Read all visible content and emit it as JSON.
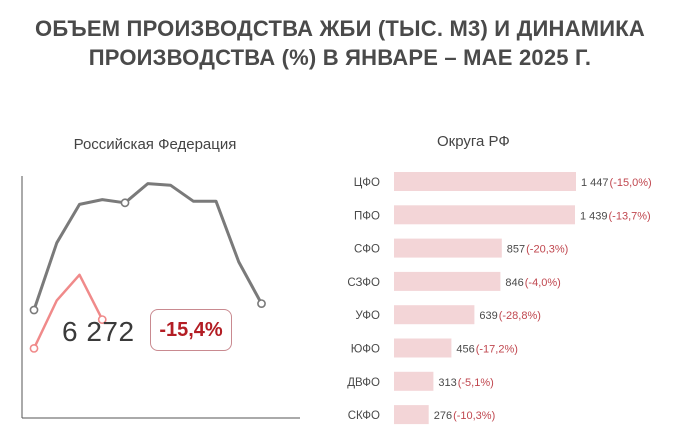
{
  "title": {
    "line1": "ОБЪЕМ ПРОИЗВОДСТВА ЖБИ (ТЫС. М3) И ДИНАМИКА",
    "line2": "ПРОИЗВОДСТВА (%) В ЯНВАРЕ – МАЕ 2025 Г."
  },
  "left_panel": {
    "title": "Российская Федерация",
    "value": "6 272",
    "change": "-15,4%"
  },
  "right_panel": {
    "title": "Округа РФ"
  },
  "colors": {
    "line_prev": "#7a7a7a",
    "line_curr": "#f08a8a",
    "bar_fill": "#f3d5d7",
    "change_negative": "#b31d24",
    "label_text": "#4a4a4a"
  },
  "chart_data": [
    {
      "type": "line",
      "x": [
        1,
        2,
        3,
        4,
        5,
        6,
        7,
        8,
        9,
        10,
        11,
        12
      ],
      "series": [
        {
          "values": [
            0.1,
            0.52,
            0.76,
            0.79,
            0.77,
            0.89,
            0.88,
            0.78,
            0.78,
            0.4,
            0.14,
            null
          ]
        },
        {
          "values": [
            -0.14,
            0.16,
            0.32,
            0.04,
            null,
            null,
            null,
            null,
            null,
            null,
            null,
            null
          ]
        }
      ],
      "axes": "y-axis and x-axis lines, no ticks or labels"
    },
    {
      "type": "bar",
      "orientation": "horizontal",
      "categories": [
        "ЦФО",
        "ПФО",
        "СФО",
        "СЗФО",
        "УФО",
        "ЮФО",
        "ДВФО",
        "СКФО"
      ],
      "values": [
        1447,
        1439,
        857,
        846,
        639,
        456,
        313,
        276
      ],
      "value_labels": [
        "1 447",
        "1 439",
        "857",
        "846",
        "639",
        "456",
        "313",
        "276"
      ],
      "changes": [
        "(-15,0%)",
        "(-13,7%)",
        "(-20,3%)",
        "(-4,0%)",
        "(-28,8%)",
        "(-17,2%)",
        "(-5,1%)",
        "(-10,3%)"
      ]
    }
  ]
}
